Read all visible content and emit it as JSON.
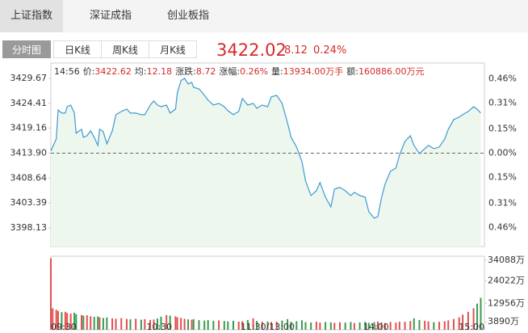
{
  "tabs": [
    "上证指数",
    "深证成指",
    "创业板指"
  ],
  "period_tabs": [
    "分时图",
    "日K线",
    "周K线",
    "月K线"
  ],
  "quote": {
    "price": "3422.02",
    "change": "8.12",
    "change_pct": "0.24%"
  },
  "info": {
    "time": "14:56",
    "items": [
      {
        "label": "价:",
        "value": "3422.62"
      },
      {
        "label": "均:",
        "value": "12.18"
      },
      {
        "label": "涨跌:",
        "value": "8.72"
      },
      {
        "label": "涨幅:",
        "value": "0.26%"
      },
      {
        "label": "量:",
        "value": "13934.00万手"
      },
      {
        "label": "额:",
        "value": "160886.00万元"
      }
    ]
  },
  "chart_data": [
    {
      "type": "line",
      "color": "#3a9bd0",
      "fill_color": "#eef7ee",
      "up_color": "#d42b2b",
      "down_color": "#2e9a4c",
      "zero_line": true,
      "x": [
        0,
        1,
        3,
        4,
        6,
        8,
        9,
        11,
        13,
        14,
        17,
        18,
        20,
        22,
        24,
        26,
        27,
        29,
        31,
        34,
        36,
        39,
        42,
        44,
        47,
        50,
        52,
        55,
        57,
        59,
        61,
        64,
        66,
        69,
        70,
        72,
        74,
        76,
        78,
        79,
        82,
        85,
        87,
        90,
        93,
        96,
        98,
        101,
        104,
        106,
        109,
        112,
        114,
        117,
        120,
        122,
        125,
        128,
        131,
        133,
        136,
        139,
        141,
        144,
        147,
        149,
        152,
        155,
        157,
        160,
        163,
        166,
        168,
        171,
        174,
        176,
        179,
        181,
        183,
        185,
        188,
        191,
        193,
        196,
        199,
        201,
        204,
        207,
        209,
        212,
        215,
        218,
        220,
        223,
        226,
        228,
        231,
        234,
        236,
        238
      ],
      "values": [
        3414.33,
        3415.18,
        3416.88,
        3423.02,
        3422.34,
        3422.34,
        3423.7,
        3424.04,
        3422.34,
        3418.08,
        3418.93,
        3417.23,
        3417.57,
        3418.59,
        3417.23,
        3415.52,
        3418.93,
        3418.42,
        3415.86,
        3418.59,
        3422.0,
        3422.68,
        3423.19,
        3422.34,
        3422.34,
        3422.0,
        3422.0,
        3424.04,
        3424.9,
        3424.04,
        3423.7,
        3424.04,
        3422.34,
        3423.19,
        3426.6,
        3429.16,
        3429.67,
        3428.48,
        3428.82,
        3427.79,
        3427.45,
        3426.09,
        3425.07,
        3424.04,
        3424.39,
        3423.7,
        3422.85,
        3422.0,
        3422.68,
        3425.41,
        3424.04,
        3424.39,
        3423.36,
        3424.04,
        3423.7,
        3425.75,
        3426.09,
        3424.39,
        3420.29,
        3417.23,
        3415.18,
        3412.11,
        3408.02,
        3404.95,
        3405.97,
        3407.68,
        3404.61,
        3402.57,
        3406.32,
        3406.66,
        3405.97,
        3404.95,
        3405.63,
        3404.95,
        3404.61,
        3401.54,
        3400.18,
        3400.52,
        3404.44,
        3407.34,
        3410.07,
        3410.75,
        3413.48,
        3416.37,
        3417.57,
        3415.52,
        3413.82,
        3414.84,
        3415.52,
        3414.84,
        3415.18,
        3416.88,
        3418.93,
        3420.98,
        3421.49,
        3422.0,
        3422.68,
        3423.7,
        3423.19,
        3422.34
      ],
      "xlim": [
        0,
        240
      ],
      "ylim": [
        3394.2,
        3432.9
      ],
      "yticks": [
        3429.67,
        3424.41,
        3419.16,
        {
          "value": 3413.9,
          "label": "3413.90"
        },
        3408.64,
        3403.39,
        3398.13
      ],
      "y2lim": [
        -0.577,
        0.557
      ],
      "y2ticks": [
        {
          "value": 0.46,
          "label": "0.46%"
        },
        {
          "value": 0.31,
          "label": "0.31%"
        },
        {
          "value": 0.15,
          "label": "0.15%"
        },
        {
          "value": 0,
          "label": "0.00%"
        },
        {
          "value": -0.15,
          "label": "0.15%"
        },
        {
          "value": -0.31,
          "label": "0.31%"
        },
        {
          "value": -0.46,
          "label": "0.46%"
        }
      ]
    },
    {
      "type": "bar",
      "up_color": "#e05050",
      "down_color": "#3a9a50",
      "values": [
        35000,
        10500,
        9800,
        9200,
        8600,
        8800,
        8200,
        7900,
        8300,
        7600,
        7200,
        6900,
        7100,
        6600,
        6300,
        6500,
        6100,
        5800,
        6000,
        5600,
        5400,
        5700,
        5300,
        5100,
        5400,
        4900,
        5200,
        4800,
        5000,
        5500,
        6400,
        7200,
        6900,
        6600,
        6100,
        5800,
        5400,
        5100,
        4900,
        5200,
        4700,
        4500,
        4800,
        4400,
        4600,
        4300,
        4100,
        4400,
        4000,
        4200,
        4800,
        5600,
        4300,
        3900,
        4100,
        3800,
        4000,
        4500,
        5200,
        3900,
        4200,
        4600,
        3700,
        3600,
        3900,
        3500,
        3800,
        3600,
        3400,
        3700,
        3500,
        3800,
        3300,
        3600,
        3900,
        3400,
        3700,
        4000,
        3600,
        3300,
        3800,
        3500,
        3900,
        3900,
        4300,
        5600,
        4800,
        4400,
        4100,
        3700,
        3900,
        4200,
        4600,
        5300,
        6100,
        7400,
        8800,
        10500,
        12800,
        15600
      ],
      "xlim": [
        0,
        240
      ],
      "ylim": [
        0,
        36000
      ],
      "xticks": [
        {
          "value": 0,
          "label": "09:30"
        },
        {
          "value": 60,
          "label": "10:30"
        },
        {
          "value": 120,
          "label": "11:30/13:00"
        },
        {
          "value": 180,
          "label": "14:00"
        },
        {
          "value": 240,
          "label": "15:00"
        }
      ],
      "yticks": [
        {
          "value": 34088,
          "label": "34088万"
        },
        {
          "value": 24022,
          "label": "24022万"
        },
        {
          "value": 12956,
          "label": "12956万"
        },
        {
          "value": 3890,
          "label": "3890万"
        }
      ]
    }
  ]
}
